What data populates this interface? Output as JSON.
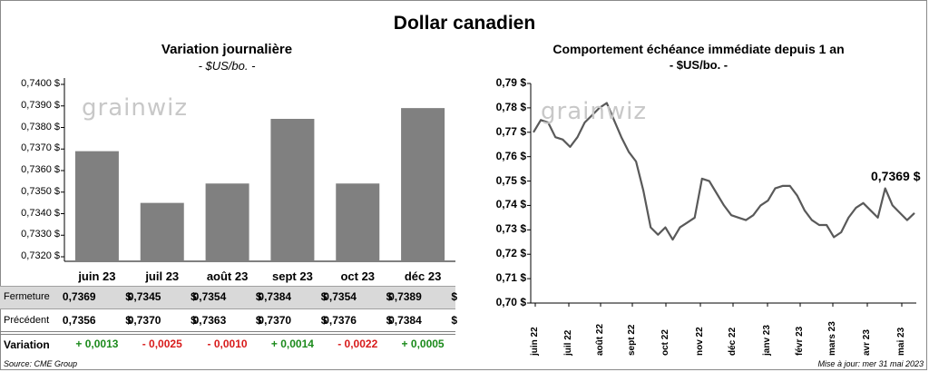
{
  "title": "Dollar canadien",
  "left_chart": {
    "title": "Variation  journalière",
    "unit": "- $US/bo. -",
    "watermark": "grainwiz",
    "y_ticks": [
      "0,7400 $",
      "0,7390 $",
      "0,7380 $",
      "0,7370 $",
      "0,7360 $",
      "0,7350 $",
      "0,7340 $",
      "0,7330 $",
      "0,7320 $"
    ]
  },
  "table": {
    "row1_label": "Fermeture",
    "row2_label": "Précédent",
    "row3_label": "Variation",
    "currency": "$",
    "fermeture": [
      "0,7369",
      "0,7345",
      "0,7354",
      "0,7384",
      "0,7354",
      "0,7389"
    ],
    "precedent": [
      "0,7356",
      "0,7370",
      "0,7363",
      "0,7370",
      "0,7376",
      "0,7384"
    ],
    "variation": [
      "+ 0,0013",
      "- 0,0025",
      "- 0,0010",
      "+ 0,0014",
      "- 0,0022",
      "+ 0,0005"
    ]
  },
  "right_chart": {
    "title": "Comportement échéance immédiate depuis 1 an",
    "unit": "- $US/bo. -",
    "watermark": "grainwiz",
    "callout": "0,7369 $",
    "y_ticks": [
      "0,79 $",
      "0,78 $",
      "0,77 $",
      "0,76 $",
      "0,75 $",
      "0,74 $",
      "0,73 $",
      "0,72 $",
      "0,71 $",
      "0,70 $"
    ],
    "months": [
      "juin 22",
      "juil 22",
      "août 22",
      "sept 22",
      "oct 22",
      "nov 22",
      "déc 22",
      "janv 23",
      "févr 23",
      "mars 23",
      "avr 23",
      "mai 23"
    ]
  },
  "footer": {
    "source": "Source: CME Group",
    "updated": "Mise à jour: mer 31 mai 2023"
  },
  "colors": {
    "bar": "#808080",
    "line": "#595959",
    "positive": "#1b8a1b",
    "negative": "#d81b1b",
    "row_highlight": "#d9d9d9"
  },
  "chart_data": [
    {
      "type": "bar",
      "title": "Variation  journalière",
      "ylabel": "- $US/bo. -",
      "categories": [
        "juin 23",
        "juil 23",
        "août 23",
        "sept 23",
        "oct 23",
        "déc 23"
      ],
      "values": [
        0.7369,
        0.7345,
        0.7354,
        0.7384,
        0.7354,
        0.7389
      ],
      "ylim": [
        0.732,
        0.74
      ],
      "grid": false
    },
    {
      "type": "line",
      "title": "Comportement échéance immédiate depuis 1 an",
      "ylabel": "- $US/bo. -",
      "x": [
        "2022-06-01",
        "2022-06-08",
        "2022-06-15",
        "2022-06-22",
        "2022-06-29",
        "2022-07-06",
        "2022-07-13",
        "2022-07-20",
        "2022-07-27",
        "2022-08-03",
        "2022-08-10",
        "2022-08-17",
        "2022-08-24",
        "2022-08-31",
        "2022-09-07",
        "2022-09-14",
        "2022-09-21",
        "2022-09-28",
        "2022-10-05",
        "2022-10-12",
        "2022-10-19",
        "2022-10-26",
        "2022-11-02",
        "2022-11-09",
        "2022-11-16",
        "2022-11-23",
        "2022-11-30",
        "2022-12-07",
        "2022-12-14",
        "2022-12-21",
        "2022-12-28",
        "2023-01-04",
        "2023-01-11",
        "2023-01-18",
        "2023-01-25",
        "2023-02-01",
        "2023-02-08",
        "2023-02-15",
        "2023-02-22",
        "2023-03-01",
        "2023-03-08",
        "2023-03-15",
        "2023-03-22",
        "2023-03-29",
        "2023-04-05",
        "2023-04-12",
        "2023-04-19",
        "2023-04-26",
        "2023-05-03",
        "2023-05-10",
        "2023-05-17",
        "2023-05-24",
        "2023-05-31"
      ],
      "values": [
        0.77,
        0.775,
        0.774,
        0.768,
        0.767,
        0.764,
        0.768,
        0.774,
        0.777,
        0.78,
        0.782,
        0.775,
        0.768,
        0.762,
        0.758,
        0.746,
        0.731,
        0.728,
        0.731,
        0.726,
        0.731,
        0.733,
        0.735,
        0.751,
        0.75,
        0.745,
        0.74,
        0.736,
        0.735,
        0.734,
        0.736,
        0.74,
        0.742,
        0.747,
        0.748,
        0.748,
        0.744,
        0.738,
        0.734,
        0.732,
        0.732,
        0.727,
        0.729,
        0.735,
        0.739,
        0.741,
        0.738,
        0.735,
        0.747,
        0.74,
        0.737,
        0.734,
        0.7369
      ],
      "ylim": [
        0.7,
        0.79
      ],
      "grid": false
    }
  ]
}
